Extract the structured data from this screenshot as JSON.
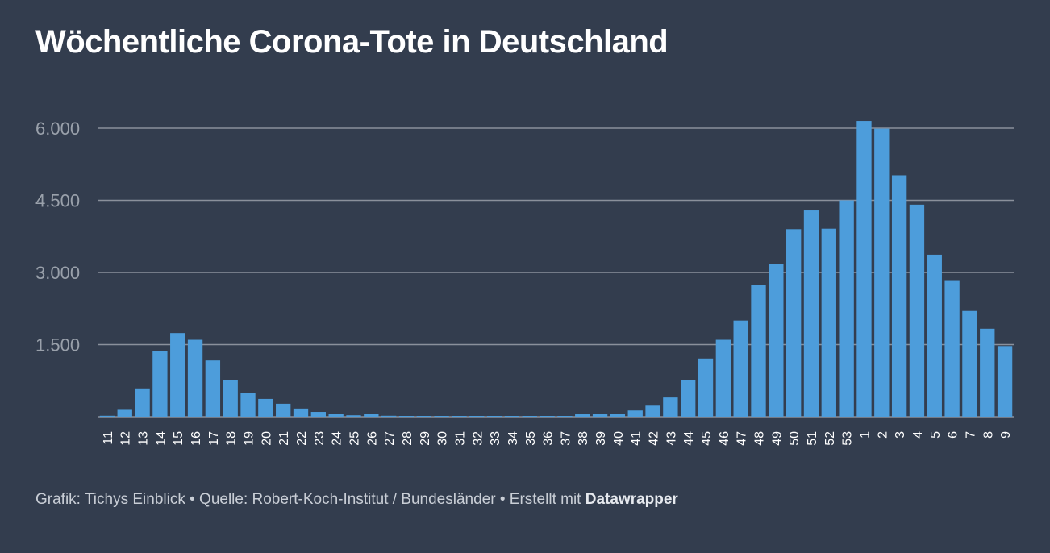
{
  "chart_data": {
    "type": "bar",
    "title": "Wöchentliche Corona-Tote in Deutschland",
    "xlabel": "",
    "ylabel": "",
    "ylim": [
      0,
      6000
    ],
    "yticks": [
      1500,
      3000,
      4500,
      6000
    ],
    "ytick_labels": [
      "1.500",
      "3.000",
      "4.500",
      "6.000"
    ],
    "grid": true,
    "bar_color": "#4d9ddb",
    "categories": [
      "11",
      "12",
      "13",
      "14",
      "15",
      "16",
      "17",
      "18",
      "19",
      "20",
      "21",
      "22",
      "23",
      "24",
      "25",
      "26",
      "27",
      "28",
      "29",
      "30",
      "31",
      "32",
      "33",
      "34",
      "35",
      "36",
      "37",
      "38",
      "39",
      "40",
      "41",
      "42",
      "43",
      "44",
      "45",
      "46",
      "47",
      "48",
      "49",
      "50",
      "51",
      "52",
      "53",
      "1",
      "2",
      "3",
      "4",
      "5",
      "6",
      "7",
      "8",
      "9"
    ],
    "values": [
      20,
      160,
      590,
      1370,
      1740,
      1600,
      1170,
      760,
      500,
      370,
      270,
      170,
      100,
      60,
      30,
      55,
      20,
      15,
      15,
      15,
      15,
      15,
      15,
      15,
      15,
      15,
      15,
      50,
      55,
      65,
      130,
      230,
      400,
      770,
      1210,
      1600,
      2000,
      2740,
      3180,
      3900,
      4290,
      3910,
      4500,
      6150,
      5990,
      5020,
      4410,
      3370,
      2840,
      2200,
      1830,
      1470
    ]
  },
  "footer": {
    "prefix": "Grafik: Tichys Einblick • Quelle: Robert-Koch-Institut / Bundesländer • Erstellt mit ",
    "brand": "Datawrapper"
  }
}
